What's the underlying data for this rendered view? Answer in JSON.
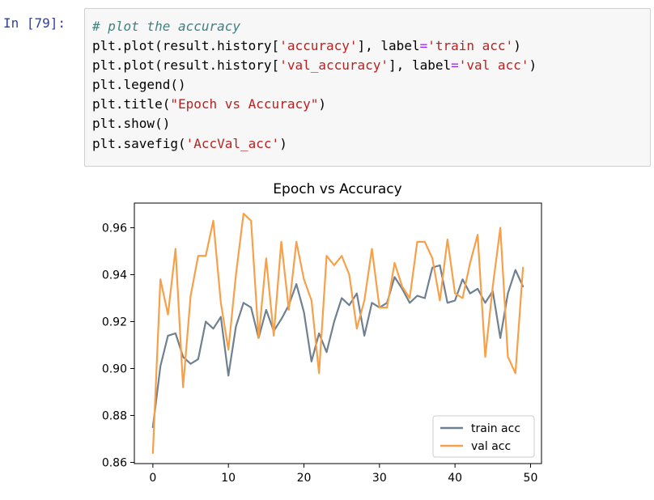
{
  "cell": {
    "prompt": "In [79]:",
    "lines": [
      [
        {
          "t": "# plot the accuracy",
          "c": "comment"
        }
      ],
      [
        {
          "t": "plt.plot(result.history[",
          "c": "plain"
        },
        {
          "t": "'accuracy'",
          "c": "str"
        },
        {
          "t": "], label",
          "c": "plain"
        },
        {
          "t": "=",
          "c": "op"
        },
        {
          "t": "'train acc'",
          "c": "str"
        },
        {
          "t": ")",
          "c": "plain"
        }
      ],
      [
        {
          "t": "plt.plot(result.history[",
          "c": "plain"
        },
        {
          "t": "'val_accuracy'",
          "c": "str"
        },
        {
          "t": "], label",
          "c": "plain"
        },
        {
          "t": "=",
          "c": "op"
        },
        {
          "t": "'val acc'",
          "c": "str"
        },
        {
          "t": ")",
          "c": "plain"
        }
      ],
      [
        {
          "t": "plt.legend()",
          "c": "plain"
        }
      ],
      [
        {
          "t": "plt.title(",
          "c": "plain"
        },
        {
          "t": "\"Epoch vs Accuracy\"",
          "c": "str"
        },
        {
          "t": ")",
          "c": "plain"
        }
      ],
      [
        {
          "t": "plt.show()",
          "c": "plain"
        }
      ],
      [
        {
          "t": "plt.savefig(",
          "c": "plain"
        },
        {
          "t": "'AccVal_acc'",
          "c": "str"
        },
        {
          "t": ")",
          "c": "plain"
        }
      ]
    ]
  },
  "chart_data": {
    "type": "line",
    "title": "Epoch vs Accuracy",
    "xlabel": "",
    "ylabel": "",
    "xlim": [
      -2.45,
      51.45
    ],
    "ylim": [
      0.8595,
      0.9705
    ],
    "xticks": [
      0,
      10,
      20,
      30,
      40,
      50
    ],
    "yticks": [
      0.86,
      0.88,
      0.9,
      0.92,
      0.94,
      0.96
    ],
    "ytick_labels": [
      "0.86",
      "0.88",
      "0.90",
      "0.92",
      "0.94",
      "0.96"
    ],
    "grid": false,
    "legend_position": "lower-right",
    "x": [
      0,
      1,
      2,
      3,
      4,
      5,
      6,
      7,
      8,
      9,
      10,
      11,
      12,
      13,
      14,
      15,
      16,
      17,
      18,
      19,
      20,
      21,
      22,
      23,
      24,
      25,
      26,
      27,
      28,
      29,
      30,
      31,
      32,
      33,
      34,
      35,
      36,
      37,
      38,
      39,
      40,
      41,
      42,
      43,
      44,
      45,
      46,
      47,
      48,
      49
    ],
    "series": [
      {
        "name": "train acc",
        "color": "#6f8191",
        "values": [
          0.875,
          0.901,
          0.914,
          0.915,
          0.905,
          0.902,
          0.904,
          0.92,
          0.917,
          0.922,
          0.897,
          0.918,
          0.928,
          0.926,
          0.913,
          0.925,
          0.916,
          0.921,
          0.927,
          0.936,
          0.924,
          0.903,
          0.915,
          0.907,
          0.92,
          0.93,
          0.927,
          0.932,
          0.914,
          0.928,
          0.926,
          0.928,
          0.939,
          0.934,
          0.928,
          0.931,
          0.93,
          0.943,
          0.944,
          0.928,
          0.929,
          0.938,
          0.932,
          0.934,
          0.928,
          0.933,
          0.913,
          0.932,
          0.942,
          0.935
        ]
      },
      {
        "name": "val acc",
        "color": "#f7a04a",
        "values": [
          0.864,
          0.938,
          0.923,
          0.951,
          0.892,
          0.931,
          0.948,
          0.948,
          0.963,
          0.928,
          0.908,
          0.94,
          0.966,
          0.963,
          0.913,
          0.947,
          0.914,
          0.954,
          0.925,
          0.954,
          0.938,
          0.929,
          0.898,
          0.948,
          0.944,
          0.948,
          0.94,
          0.917,
          0.929,
          0.951,
          0.926,
          0.926,
          0.945,
          0.935,
          0.93,
          0.954,
          0.954,
          0.947,
          0.929,
          0.955,
          0.932,
          0.93,
          0.945,
          0.957,
          0.905,
          0.935,
          0.96,
          0.905,
          0.898,
          0.943
        ]
      }
    ]
  }
}
